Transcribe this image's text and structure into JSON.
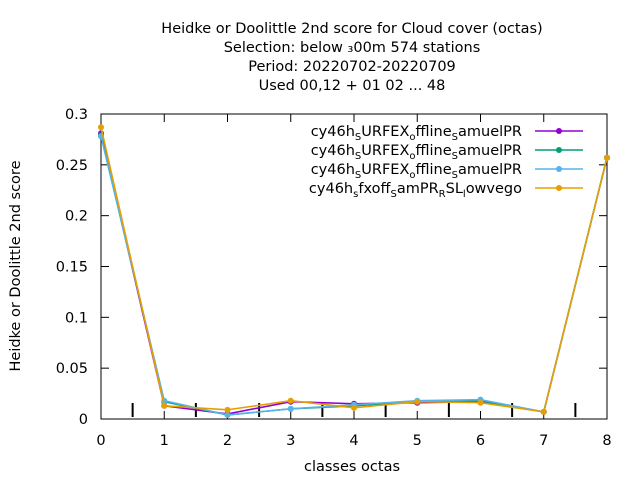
{
  "chart_data": {
    "type": "line",
    "title_lines": [
      "Heidke or Doolittle 2nd score  for Cloud cover (octas)",
      "Selection: below ₃00m    574 stations",
      "Period: 20220702-20220709",
      "Used  00,12  + 01 02 ... 48"
    ],
    "xlabel": "classes octas",
    "ylabel": "Heidke or Doolittle 2nd score",
    "xlim": [
      0,
      8
    ],
    "ylim": [
      0,
      0.3
    ],
    "x_ticks": [
      0,
      1,
      2,
      3,
      4,
      5,
      6,
      7,
      8
    ],
    "x_tick_labels": [
      "0",
      "1",
      "2",
      "3",
      "4",
      "5",
      "6",
      "7",
      "8"
    ],
    "y_ticks": [
      0,
      0.05,
      0.1,
      0.15,
      0.2,
      0.25,
      0.3
    ],
    "y_tick_labels": [
      "0",
      "0.05",
      "0.1",
      "0.15",
      "0.2",
      "0.25",
      "0.3"
    ],
    "legend_position": "top-right",
    "grid": false,
    "x": [
      0,
      1,
      2,
      3,
      4,
      5,
      6,
      7,
      8
    ],
    "series": [
      {
        "name": "cy46h_SURFEX_offline_SamuelPR",
        "color": "#9400d3",
        "values": [
          0.281,
          0.013,
          0.005,
          0.017,
          0.015,
          0.016,
          0.017,
          0.007,
          0.257
        ]
      },
      {
        "name": "cy46h_SURFEX_offline_SamuelPR",
        "color": "#009e73",
        "values": [
          0.279,
          0.017,
          0.004,
          0.01,
          0.013,
          0.017,
          0.018,
          0.007,
          0.257
        ]
      },
      {
        "name": "cy46h_SURFEX_offline_SamuelPR",
        "color": "#56b4e9",
        "values": [
          0.278,
          0.018,
          0.004,
          0.01,
          0.014,
          0.018,
          0.019,
          0.007,
          0.257
        ]
      },
      {
        "name": "cy46h_sfxoff_SamPR_RSL_lowvego",
        "color": "#e69f00",
        "values": [
          0.287,
          0.013,
          0.009,
          0.018,
          0.011,
          0.017,
          0.016,
          0.007,
          0.257
        ]
      }
    ],
    "legend_label_parts": [
      [
        {
          "t": "cy46h",
          "sub": false
        },
        {
          "t": "S",
          "sub": true
        },
        {
          "t": "URFEX",
          "sub": false
        },
        {
          "t": "o",
          "sub": true
        },
        {
          "t": "ffline",
          "sub": false
        },
        {
          "t": "S",
          "sub": true
        },
        {
          "t": "amuelPR",
          "sub": false
        }
      ],
      [
        {
          "t": "cy46h",
          "sub": false
        },
        {
          "t": "S",
          "sub": true
        },
        {
          "t": "URFEX",
          "sub": false
        },
        {
          "t": "o",
          "sub": true
        },
        {
          "t": "ffline",
          "sub": false
        },
        {
          "t": "S",
          "sub": true
        },
        {
          "t": "amuelPR",
          "sub": false
        }
      ],
      [
        {
          "t": "cy46h",
          "sub": false
        },
        {
          "t": "S",
          "sub": true
        },
        {
          "t": "URFEX",
          "sub": false
        },
        {
          "t": "o",
          "sub": true
        },
        {
          "t": "ffline",
          "sub": false
        },
        {
          "t": "S",
          "sub": true
        },
        {
          "t": "amuelPR",
          "sub": false
        }
      ],
      [
        {
          "t": "cy46h",
          "sub": false
        },
        {
          "t": "s",
          "sub": true
        },
        {
          "t": "fxoff",
          "sub": false
        },
        {
          "t": "S",
          "sub": true
        },
        {
          "t": "amPR",
          "sub": false
        },
        {
          "t": "R",
          "sub": true
        },
        {
          "t": "SL",
          "sub": false
        },
        {
          "t": "l",
          "sub": true
        },
        {
          "t": "owvego",
          "sub": false
        }
      ]
    ]
  }
}
